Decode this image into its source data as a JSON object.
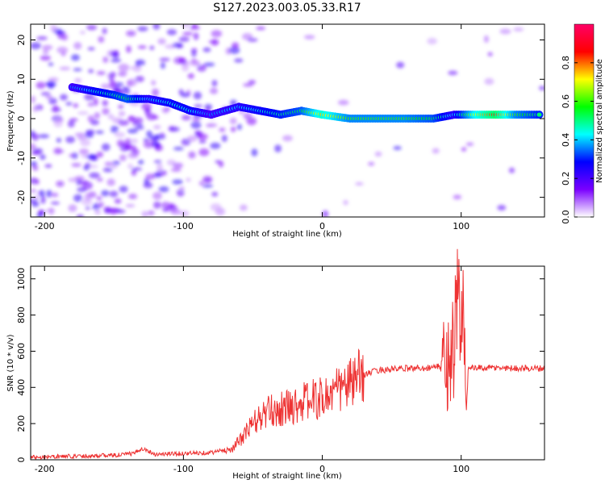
{
  "title": "S127.2023.003.05.33.R17",
  "chart_data": [
    {
      "type": "heatmap",
      "xlabel": "Height of straight line (km)",
      "ylabel": "Frequency (Hz)",
      "xlim": [
        -210,
        160
      ],
      "ylim": [
        -25,
        24
      ],
      "xticks": [
        -200,
        -100,
        0,
        100
      ],
      "yticks": [
        -20,
        -10,
        0,
        10,
        20
      ],
      "colorbar": {
        "label": "Normalized spectral amplitude",
        "range": [
          0,
          1
        ],
        "ticks": [
          0.0,
          0.2,
          0.4,
          0.6,
          0.8
        ],
        "colors": [
          "#ffffff",
          "#7a00ff",
          "#0000ff",
          "#00ffff",
          "#00ff00",
          "#ffff00",
          "#ff0000",
          "#ff0066"
        ]
      },
      "ridge": [
        {
          "x": -180,
          "y": 8,
          "a": 0.35
        },
        {
          "x": -165,
          "y": 7,
          "a": 0.45
        },
        {
          "x": -150,
          "y": 6,
          "a": 0.5
        },
        {
          "x": -140,
          "y": 5,
          "a": 0.55
        },
        {
          "x": -125,
          "y": 5,
          "a": 0.4
        },
        {
          "x": -110,
          "y": 4,
          "a": 0.45
        },
        {
          "x": -95,
          "y": 2,
          "a": 0.45
        },
        {
          "x": -80,
          "y": 1,
          "a": 0.35
        },
        {
          "x": -60,
          "y": 3,
          "a": 0.4
        },
        {
          "x": -45,
          "y": 2,
          "a": 0.45
        },
        {
          "x": -30,
          "y": 1,
          "a": 0.5
        },
        {
          "x": -15,
          "y": 2,
          "a": 0.55
        },
        {
          "x": 0,
          "y": 1,
          "a": 0.75
        },
        {
          "x": 20,
          "y": 0,
          "a": 0.6
        },
        {
          "x": 40,
          "y": 0,
          "a": 0.6
        },
        {
          "x": 60,
          "y": 0,
          "a": 0.6
        },
        {
          "x": 80,
          "y": 0,
          "a": 0.55
        },
        {
          "x": 95,
          "y": 1,
          "a": 0.4
        },
        {
          "x": 110,
          "y": 1,
          "a": 0.7
        },
        {
          "x": 125,
          "y": 1,
          "a": 0.85
        },
        {
          "x": 140,
          "y": 1,
          "a": 0.6
        },
        {
          "x": 158,
          "y": 1,
          "a": 0.5
        }
      ]
    },
    {
      "type": "line",
      "xlabel": "Height of straight line (km)",
      "ylabel": "SNR (10 * v/v)",
      "xlim": [
        -210,
        160
      ],
      "ylim": [
        0,
        1070
      ],
      "xticks": [
        -200,
        -100,
        0,
        100
      ],
      "yticks": [
        0,
        200,
        400,
        600,
        800,
        1000
      ],
      "color": "#ee3333",
      "x": [
        -210,
        -180,
        -150,
        -135,
        -130,
        -120,
        -100,
        -80,
        -65,
        -58,
        -50,
        -40,
        -30,
        -20,
        -10,
        0,
        10,
        20,
        30,
        40,
        60,
        80,
        90,
        95,
        98,
        100,
        101,
        103,
        105,
        120,
        140,
        160
      ],
      "y": [
        15,
        20,
        25,
        35,
        65,
        30,
        35,
        40,
        60,
        120,
        200,
        260,
        280,
        300,
        330,
        340,
        380,
        420,
        470,
        495,
        505,
        510,
        530,
        650,
        900,
        500,
        1060,
        440,
        505,
        508,
        506,
        505
      ]
    }
  ]
}
